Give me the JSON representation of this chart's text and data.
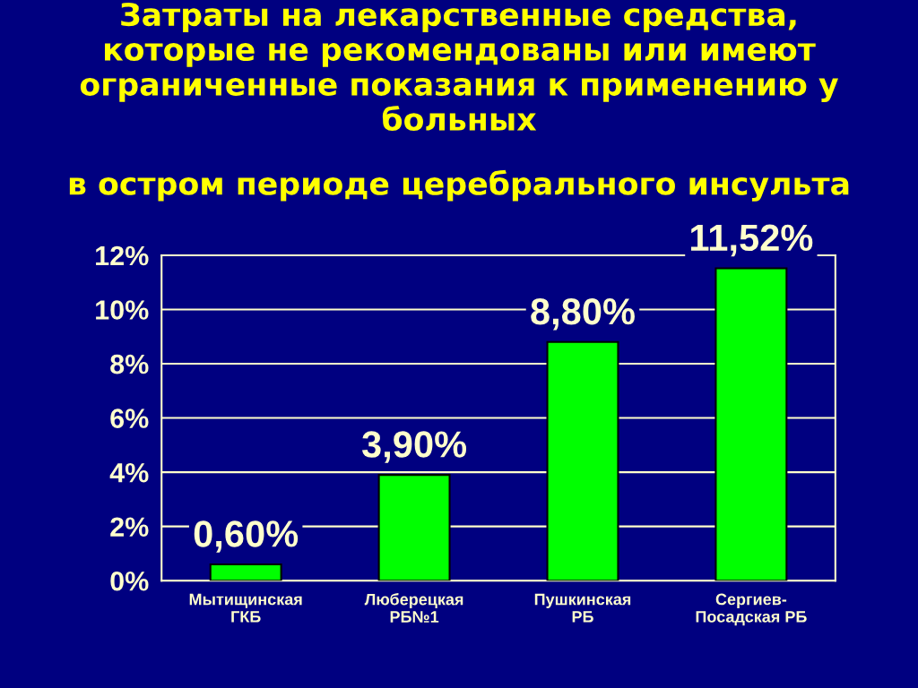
{
  "chart_data": {
    "type": "bar",
    "title": "Затраты на лекарственные средства,\nкоторые не рекомендованы или имеют\nограниченные показания к применению у\nбольных",
    "subtitle": "в остром периоде церебрального инсульта",
    "categories": [
      "Мытищинская\nГКБ",
      "Люберецкая\nРБ№1",
      "Пушкинская\nРБ",
      "Сергиев-\nПосадская РБ"
    ],
    "values": [
      0.6,
      3.9,
      8.8,
      11.52
    ],
    "color": "#00ff00",
    "value_labels": [
      "0,60%",
      "3,90%",
      "8,80%",
      "11,52%"
    ],
    "ylim": [
      0,
      12
    ],
    "yticks": [
      {
        "value": 0,
        "label": "0%"
      },
      {
        "value": 2,
        "label": "2%"
      },
      {
        "value": 4,
        "label": "4%"
      },
      {
        "value": 6,
        "label": "6%"
      },
      {
        "value": 8,
        "label": "8%"
      },
      {
        "value": 10,
        "label": "10%"
      },
      {
        "value": 12,
        "label": "12%"
      }
    ],
    "grid": "y"
  }
}
